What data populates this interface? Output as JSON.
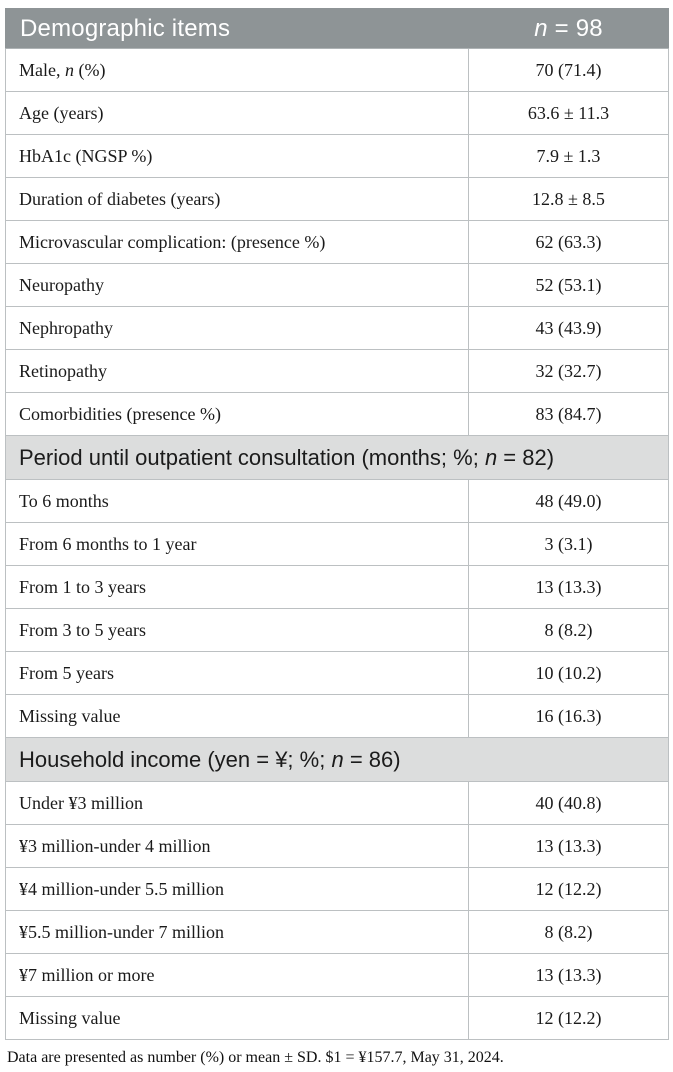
{
  "table": {
    "header": {
      "item_col": "Demographic items",
      "value_col": "*n* = 98"
    },
    "sections": [
      {
        "rows": [
          {
            "label": "Male, *n* (%)",
            "value": "70 (71.4)"
          },
          {
            "label": "Age (years)",
            "value": "63.6 ± 11.3"
          },
          {
            "label": "HbA1c (NGSP %)",
            "value": "7.9 ± 1.3"
          },
          {
            "label": "Duration of diabetes (years)",
            "value": "12.8 ± 8.5"
          },
          {
            "label": "Microvascular complication: (presence %)",
            "value": "62 (63.3)"
          },
          {
            "label": "Neuropathy",
            "value": "52 (53.1)"
          },
          {
            "label": "Nephropathy",
            "value": "43 (43.9)"
          },
          {
            "label": "Retinopathy",
            "value": "32 (32.7)"
          },
          {
            "label": "Comorbidities (presence %)",
            "value": "83 (84.7)"
          }
        ]
      },
      {
        "title": "Period until outpatient consultation (months; %; *n* = 82)",
        "rows": [
          {
            "label": "To 6 months",
            "value": "48 (49.0)"
          },
          {
            "label": "From 6 months to 1 year",
            "value": "3 (3.1)"
          },
          {
            "label": "From 1 to 3 years",
            "value": "13 (13.3)"
          },
          {
            "label": "From 3 to 5 years",
            "value": "8 (8.2)"
          },
          {
            "label": "From 5 years",
            "value": "10 (10.2)"
          },
          {
            "label": "Missing value",
            "value": "16 (16.3)"
          }
        ]
      },
      {
        "title": "Household income (yen = ¥; %; *n* = 86)",
        "rows": [
          {
            "label": "Under ¥3 million",
            "value": "40 (40.8)"
          },
          {
            "label": "¥3 million-under 4 million",
            "value": "13 (13.3)"
          },
          {
            "label": "¥4 million-under 5.5 million",
            "value": "12 (12.2)"
          },
          {
            "label": "¥5.5 million-under 7 million",
            "value": "8 (8.2)"
          },
          {
            "label": "¥7 million or more",
            "value": "13 (13.3)"
          },
          {
            "label": "Missing value",
            "value": "12 (12.2)"
          }
        ]
      }
    ],
    "footnote": "Data are presented as number (%) or mean ± SD. $1 = ¥157.7, May 31, 2024."
  },
  "colors": {
    "header_bg": "#8e9496",
    "header_text": "#ffffff",
    "section_bg": "#dcdddd",
    "border": "#bcc0c2",
    "body_text": "#1a1a1a"
  }
}
